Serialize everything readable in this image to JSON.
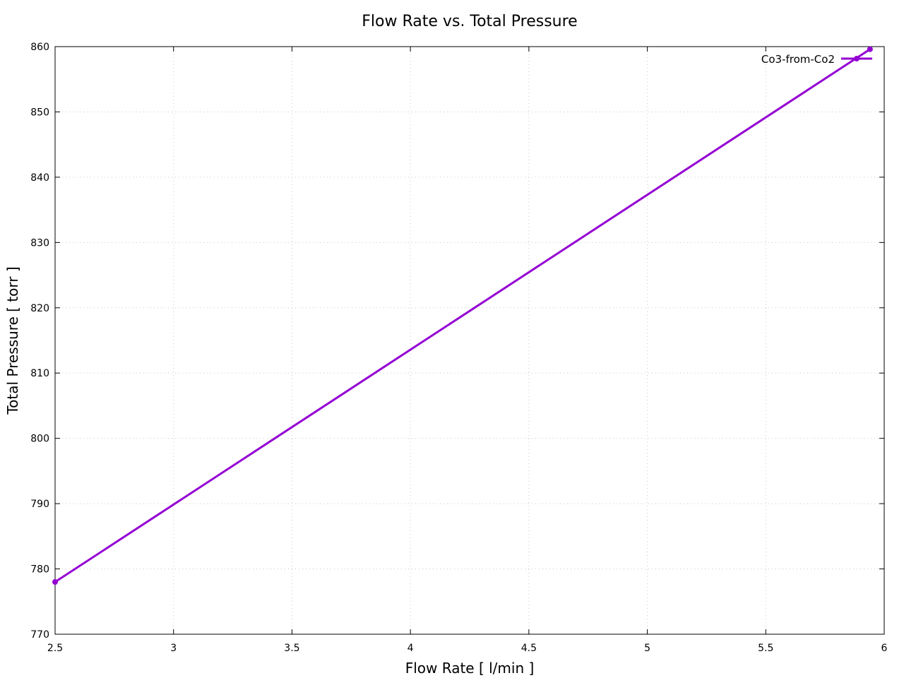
{
  "chart_data": {
    "type": "line",
    "title": "Flow Rate vs. Total Pressure",
    "xlabel": "Flow Rate [ l/min ]",
    "ylabel": "Total Pressure [ torr ]",
    "xlim": [
      2.5,
      6
    ],
    "ylim": [
      770,
      860
    ],
    "xticks": [
      "2.5",
      "3",
      "3.5",
      "4",
      "4.5",
      "5",
      "5.5",
      "6"
    ],
    "yticks": [
      "770",
      "780",
      "790",
      "800",
      "810",
      "820",
      "830",
      "840",
      "850",
      "860"
    ],
    "grid": true,
    "legend_position": "top-right",
    "series": [
      {
        "name": "Co3-from-Co2",
        "color": "#9400d3",
        "x": [
          2.5,
          5.94
        ],
        "y": [
          778,
          859.6
        ]
      }
    ]
  }
}
